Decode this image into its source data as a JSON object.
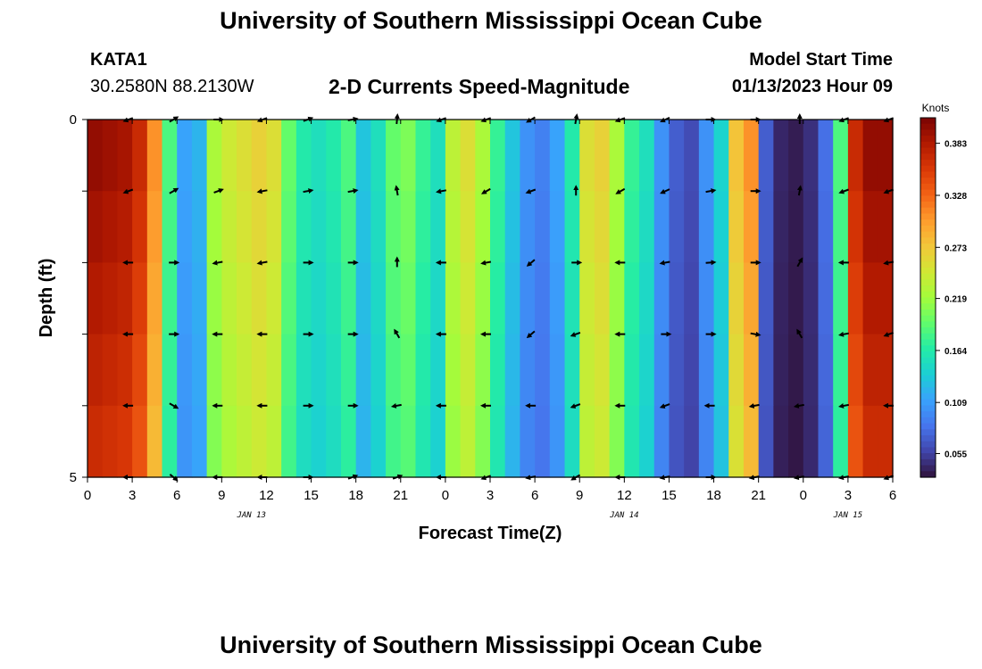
{
  "page": {
    "title": "University of Southern Mississippi Ocean Cube",
    "station": "KATA1",
    "coordinates": "30.2580N  88.2130W",
    "chart_title": "2-D Currents Speed-Magnitude",
    "model_start_label": "Model Start Time",
    "model_start_value": "01/13/2023 Hour 09",
    "bottom_title": "University of Southern Mississippi Ocean Cube"
  },
  "chart_data": {
    "type": "heatmap",
    "title": "2-D Currents Speed-Magnitude",
    "xlabel": "Forecast Time(Z)",
    "ylabel": "Depth (ft)",
    "x_ticks": [
      "0",
      "3",
      "6",
      "9",
      "12",
      "15",
      "18",
      "21",
      "0",
      "3",
      "6",
      "9",
      "12",
      "15",
      "18",
      "21",
      "0",
      "3",
      "6"
    ],
    "x_range_hours": [
      0,
      54
    ],
    "y_ticks": [
      "0",
      "",
      "",
      "",
      "",
      "5"
    ],
    "y_range_ft": [
      0,
      5
    ],
    "y_reversed": true,
    "date_labels": [
      {
        "text": "JAN 13",
        "hour": 11
      },
      {
        "text": "JAN 14",
        "hour": 36
      },
      {
        "text": "JAN 15",
        "hour": 51
      }
    ],
    "colorbar": {
      "unit": "Knots",
      "range": [
        0.03,
        0.41
      ],
      "labels": [
        0.383,
        0.328,
        0.273,
        0.219,
        0.164,
        0.109,
        0.055
      ],
      "colors": [
        "#30123b",
        "#4145ab",
        "#4675ed",
        "#39a2fc",
        "#1bcfd4",
        "#24eca6",
        "#61fc6c",
        "#a4fc3b",
        "#d1e834",
        "#f3c63a",
        "#fe9b2d",
        "#f36315",
        "#d93806",
        "#b11901",
        "#7a0403"
      ]
    },
    "depths_ft": [
      0,
      1,
      2,
      3,
      4,
      5
    ],
    "hours": [
      0,
      1,
      2,
      3,
      4,
      5,
      6,
      7,
      8,
      9,
      10,
      11,
      12,
      13,
      14,
      15,
      16,
      17,
      18,
      19,
      20,
      21,
      22,
      23,
      24,
      25,
      26,
      27,
      28,
      29,
      30,
      31,
      32,
      33,
      34,
      35,
      36,
      37,
      38,
      39,
      40,
      41,
      42,
      43,
      44,
      45,
      46,
      47,
      48,
      49,
      50,
      51,
      52,
      53,
      54
    ],
    "speed_profile": [
      0.39,
      0.385,
      0.38,
      0.36,
      0.3,
      0.18,
      0.11,
      0.12,
      0.22,
      0.24,
      0.25,
      0.26,
      0.25,
      0.19,
      0.16,
      0.15,
      0.16,
      0.18,
      0.13,
      0.15,
      0.19,
      0.2,
      0.17,
      0.15,
      0.23,
      0.25,
      0.22,
      0.17,
      0.13,
      0.1,
      0.09,
      0.11,
      0.16,
      0.25,
      0.26,
      0.22,
      0.17,
      0.15,
      0.1,
      0.07,
      0.06,
      0.1,
      0.14,
      0.27,
      0.3,
      0.07,
      0.04,
      0.035,
      0.045,
      0.08,
      0.18,
      0.36,
      0.39,
      0.39,
      0.38
    ],
    "depth_factors": [
      1.02,
      1.0,
      0.98,
      0.96,
      0.94,
      0.92
    ],
    "vector_hours": [
      3,
      6,
      9,
      12,
      15,
      18,
      21,
      24,
      27,
      30,
      33,
      36,
      39,
      42,
      45,
      48,
      51,
      54
    ],
    "vector_angles_deg": [
      [
        200,
        30,
        0,
        200,
        20,
        10,
        85,
        200,
        200,
        210,
        80,
        200,
        205,
        0,
        0,
        90,
        200,
        200
      ],
      [
        200,
        30,
        20,
        190,
        10,
        10,
        100,
        190,
        210,
        200,
        90,
        210,
        205,
        10,
        0,
        80,
        200,
        200
      ],
      [
        180,
        0,
        190,
        190,
        0,
        0,
        90,
        180,
        190,
        220,
        0,
        180,
        190,
        5,
        0,
        60,
        180,
        190
      ],
      [
        180,
        0,
        180,
        180,
        0,
        0,
        120,
        180,
        180,
        220,
        200,
        180,
        0,
        0,
        350,
        120,
        190,
        200
      ],
      [
        180,
        330,
        180,
        180,
        0,
        0,
        190,
        180,
        180,
        180,
        200,
        180,
        200,
        180,
        190,
        190,
        190,
        180
      ],
      [
        180,
        320,
        180,
        180,
        0,
        20,
        20,
        180,
        200,
        190,
        210,
        180,
        190,
        0,
        190,
        190,
        190,
        200
      ]
    ]
  }
}
